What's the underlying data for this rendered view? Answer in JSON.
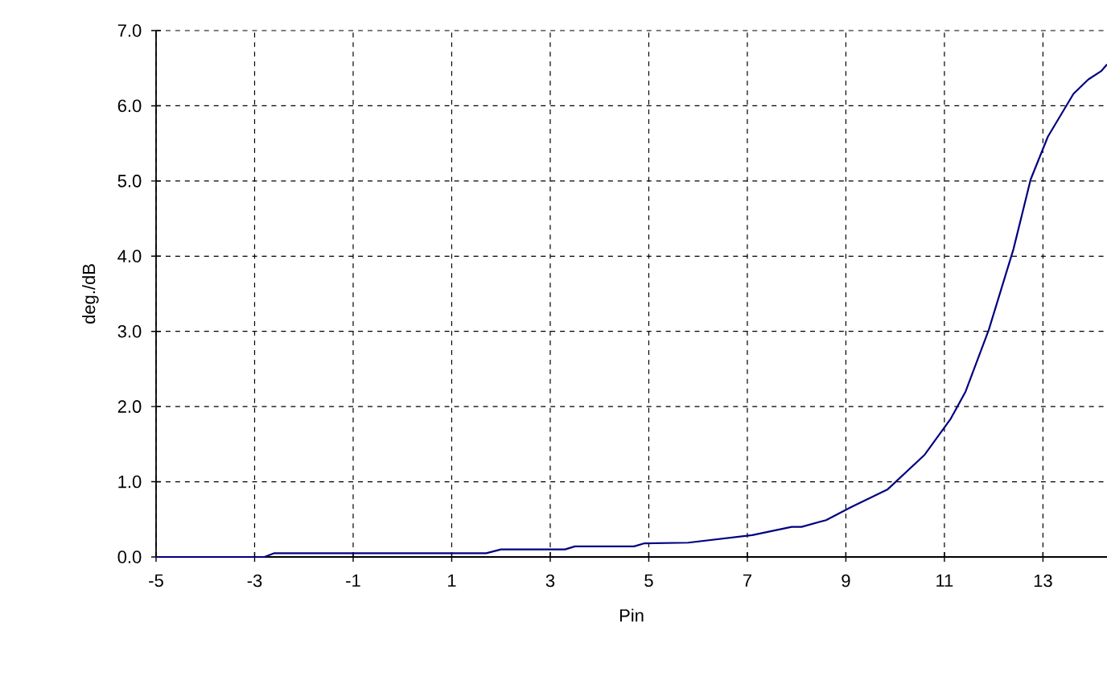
{
  "chart_data": {
    "type": "line",
    "xlabel": "Pin",
    "ylabel": "deg./dB",
    "xlim": [
      -5,
      14.3
    ],
    "xticks": [
      -5,
      -3,
      -1,
      1,
      3,
      5,
      7,
      9,
      11,
      13
    ],
    "ylim": [
      0,
      7
    ],
    "yticks": [
      {
        "value": 0,
        "label": "0.0"
      },
      {
        "value": 1,
        "label": "1.0"
      },
      {
        "value": 2,
        "label": "2.0"
      },
      {
        "value": 3,
        "label": "3.0"
      },
      {
        "value": 4,
        "label": "4.0"
      },
      {
        "value": 5,
        "label": "5.0"
      },
      {
        "value": 6,
        "label": "6.0"
      },
      {
        "value": 7,
        "label": "7.0"
      }
    ],
    "grid": true,
    "line_style": "solid",
    "marker": "none",
    "x": [
      -5,
      -3,
      -2.8,
      -2.6,
      1.7,
      2.0,
      3.3,
      3.5,
      4.7,
      4.9,
      5.8,
      7.1,
      7.9,
      8.1,
      8.6,
      9.1,
      9.85,
      10.6,
      11.13,
      11.43,
      11.9,
      12.4,
      12.75,
      13.1,
      13.62,
      13.92,
      14.18,
      14.3
    ],
    "series": [
      {
        "color": "#000080",
        "values": [
          0,
          0,
          0,
          0.05,
          0.05,
          0.1,
          0.1,
          0.14,
          0.14,
          0.18,
          0.19,
          0.29,
          0.4,
          0.4,
          0.49,
          0.66,
          0.9,
          1.36,
          1.84,
          2.2,
          3.02,
          4.09,
          5.02,
          5.59,
          6.16,
          6.35,
          6.46,
          6.55
        ]
      }
    ]
  }
}
